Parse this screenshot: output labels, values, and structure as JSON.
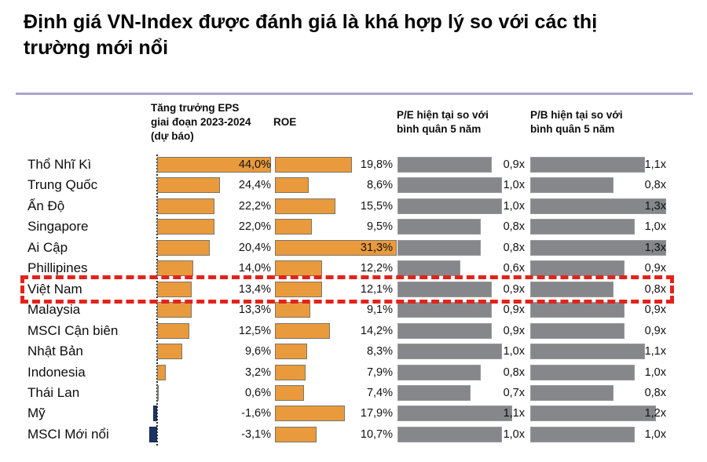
{
  "title": "Định giá VN-Index được đánh giá là khá hợp lý so với các thị trường mới nổi",
  "chart_data": {
    "type": "bar",
    "orientation": "horizontal",
    "title": "Định giá VN-Index được đánh giá là khá hợp lý so với các thị trường mới nổi",
    "legend_position": "none",
    "grid": false,
    "categories": [
      "Thổ Nhĩ Kì",
      "Trung Quốc",
      "Ấn Độ",
      "Singapore",
      "Ai Cập",
      "Phillipines",
      "Việt Nam",
      "Malaysia",
      "MSCI Cận biên",
      "Nhật Bản",
      "Indonesia",
      "Thái Lan",
      "Mỹ",
      "MSCI Mới nổi"
    ],
    "series": [
      {
        "name": "Tăng trưởng EPS giai đoạn 2023-2024 (dự báo)",
        "unit": "%",
        "axis_range": [
          -3.1,
          44.0
        ],
        "values": [
          44.0,
          24.4,
          22.2,
          22.0,
          20.4,
          14.0,
          13.4,
          13.3,
          12.5,
          9.6,
          3.2,
          0.6,
          -1.6,
          -3.1
        ],
        "labels": [
          "44,0%",
          "24,4%",
          "22,2%",
          "22,0%",
          "20,4%",
          "14,0%",
          "13,4%",
          "13,3%",
          "12,5%",
          "9,6%",
          "3,2%",
          "0,6%",
          "-1,6%",
          "-3,1%"
        ]
      },
      {
        "name": "ROE",
        "unit": "%",
        "axis_range": [
          0,
          31.3
        ],
        "values": [
          19.8,
          8.6,
          15.5,
          9.5,
          31.3,
          12.2,
          12.1,
          9.1,
          14.2,
          8.3,
          7.9,
          7.4,
          17.9,
          10.7
        ],
        "labels": [
          "19,8%",
          "8,6%",
          "15,5%",
          "9,5%",
          "31,3%",
          "12,2%",
          "12,1%",
          "9,1%",
          "14,2%",
          "8,3%",
          "7,9%",
          "7,4%",
          "17,9%",
          "10,7%"
        ]
      },
      {
        "name": "P/E hiện tại so với bình quân 5 năm",
        "unit": "x",
        "axis_range": [
          0,
          1.3
        ],
        "values": [
          0.9,
          1.0,
          1.0,
          0.8,
          0.8,
          0.6,
          0.9,
          0.9,
          0.9,
          1.0,
          0.8,
          0.7,
          1.1,
          1.0
        ],
        "labels": [
          "0,9x",
          "1,0x",
          "1,0x",
          "0,8x",
          "0,8x",
          "0,6x",
          "0,9x",
          "0,9x",
          "0,9x",
          "1,0x",
          "0,8x",
          "0,7x",
          "1,1x",
          "1,0x"
        ]
      },
      {
        "name": "P/B hiện tại so với bình quân 5 năm",
        "unit": "x",
        "axis_range": [
          0,
          1.3
        ],
        "values": [
          1.1,
          0.8,
          1.3,
          1.0,
          1.3,
          0.9,
          0.8,
          0.9,
          0.9,
          1.1,
          1.0,
          0.8,
          1.2,
          1.0
        ],
        "labels": [
          "1,1x",
          "0,8x",
          "1,3x",
          "1,0x",
          "1,3x",
          "0,9x",
          "0,8x",
          "0,9x",
          "0,9x",
          "1,1x",
          "1,0x",
          "0,8x",
          "1,2x",
          "1,0x"
        ]
      }
    ],
    "highlight": {
      "category": "Việt Nam",
      "index": 6
    },
    "colors": {
      "positive_bar": "#E99A3D",
      "negative_bar": "#1C3461",
      "ratio_bar": "#85878A",
      "highlight_box": "#E2231A",
      "divider": "#ABA4CE"
    }
  }
}
